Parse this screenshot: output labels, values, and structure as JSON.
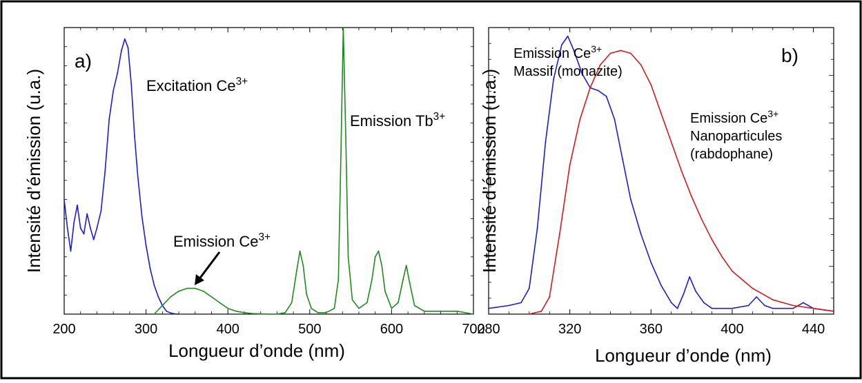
{
  "chart_data": [
    {
      "type": "line",
      "panel_label": "a)",
      "xlabel": "Longueur d’onde (nm)",
      "ylabel": "Intensité d’émission (u.a.)",
      "xlim": [
        200,
        700
      ],
      "ylim": [
        0,
        1
      ],
      "x_ticks": [
        200,
        300,
        400,
        500,
        600,
        700
      ],
      "grid": false,
      "annotations": [
        {
          "base": "Excitation Ce",
          "sup": "3+"
        },
        {
          "base": "Emission Ce",
          "sup": "3+"
        },
        {
          "base": "Emission Tb",
          "sup": "3+"
        }
      ],
      "series": [
        {
          "color": "#1a1adb",
          "x": [
            200,
            204,
            208,
            212,
            216,
            220,
            224,
            228,
            232,
            236,
            240,
            245,
            250,
            255,
            260,
            265,
            270,
            274,
            278,
            282,
            286,
            290,
            295,
            300,
            305,
            310,
            315,
            320,
            325,
            330,
            335,
            340
          ],
          "y": [
            0.4,
            0.3,
            0.22,
            0.32,
            0.38,
            0.3,
            0.28,
            0.35,
            0.3,
            0.26,
            0.3,
            0.36,
            0.5,
            0.68,
            0.78,
            0.84,
            0.92,
            0.96,
            0.93,
            0.8,
            0.62,
            0.48,
            0.34,
            0.24,
            0.16,
            0.1,
            0.06,
            0.03,
            0.01,
            0.004,
            0.001,
            0.0
          ]
        },
        {
          "color": "#1e8a1e",
          "x": [
            310,
            320,
            330,
            340,
            350,
            360,
            370,
            380,
            390,
            400,
            410,
            420,
            430,
            440,
            450,
            460,
            470,
            478,
            484,
            488,
            492,
            496,
            502,
            510,
            520,
            530,
            535,
            538,
            541,
            544,
            547,
            552,
            560,
            570,
            576,
            580,
            584,
            588,
            592,
            600,
            608,
            614,
            618,
            622,
            628,
            640,
            660,
            680,
            700
          ],
          "y": [
            0.0,
            0.03,
            0.06,
            0.08,
            0.09,
            0.09,
            0.08,
            0.06,
            0.04,
            0.02,
            0.01,
            0.005,
            0.002,
            0.001,
            0.0,
            0.0,
            0.005,
            0.04,
            0.15,
            0.22,
            0.17,
            0.07,
            0.02,
            0.005,
            0.005,
            0.02,
            0.12,
            0.55,
            1.0,
            0.62,
            0.2,
            0.05,
            0.02,
            0.04,
            0.12,
            0.2,
            0.22,
            0.17,
            0.08,
            0.02,
            0.04,
            0.12,
            0.17,
            0.11,
            0.03,
            0.01,
            0.01,
            0.01,
            0.0
          ]
        }
      ]
    },
    {
      "type": "line",
      "panel_label": "b)",
      "xlabel": "Longueur d’onde (nm)",
      "ylabel": "Intensité d’émission (u.a.)",
      "xlim": [
        280,
        450
      ],
      "ylim": [
        0,
        1
      ],
      "x_ticks": [
        280,
        320,
        360,
        400,
        440
      ],
      "grid": false,
      "annotations": [
        {
          "lines": [
            {
              "base": "Emission Ce",
              "sup": "3+"
            },
            {
              "base": "Massif (monazite)"
            }
          ]
        },
        {
          "lines": [
            {
              "base": "Emission Ce",
              "sup": "3+"
            },
            {
              "base": "Nanoparticules"
            },
            {
              "base": "(rabdophane)"
            }
          ]
        }
      ],
      "series": [
        {
          "color": "#1a1adb",
          "name": "Massif (monazite)",
          "x": [
            280,
            290,
            296,
            300,
            304,
            308,
            312,
            316,
            319,
            322,
            326,
            330,
            334,
            338,
            342,
            346,
            350,
            355,
            360,
            365,
            370,
            373,
            376,
            379,
            382,
            386,
            390,
            400,
            408,
            412,
            416,
            420,
            430,
            435,
            440,
            450
          ],
          "y": [
            0.02,
            0.03,
            0.04,
            0.09,
            0.3,
            0.6,
            0.82,
            0.94,
            0.97,
            0.92,
            0.84,
            0.79,
            0.78,
            0.76,
            0.68,
            0.54,
            0.4,
            0.28,
            0.18,
            0.1,
            0.04,
            0.02,
            0.07,
            0.13,
            0.08,
            0.04,
            0.02,
            0.02,
            0.03,
            0.06,
            0.03,
            0.02,
            0.02,
            0.04,
            0.02,
            0.01
          ]
        },
        {
          "color": "#d41a1a",
          "name": "Nanoparticules (rabdophane)",
          "x": [
            300,
            306,
            310,
            315,
            320,
            325,
            330,
            335,
            340,
            345,
            350,
            355,
            360,
            365,
            370,
            375,
            380,
            385,
            390,
            395,
            400,
            410,
            420,
            430,
            440,
            450
          ],
          "y": [
            0.0,
            0.01,
            0.06,
            0.28,
            0.52,
            0.68,
            0.79,
            0.87,
            0.91,
            0.92,
            0.91,
            0.87,
            0.8,
            0.7,
            0.6,
            0.5,
            0.41,
            0.33,
            0.26,
            0.2,
            0.15,
            0.09,
            0.05,
            0.03,
            0.02,
            0.01
          ]
        }
      ]
    }
  ]
}
